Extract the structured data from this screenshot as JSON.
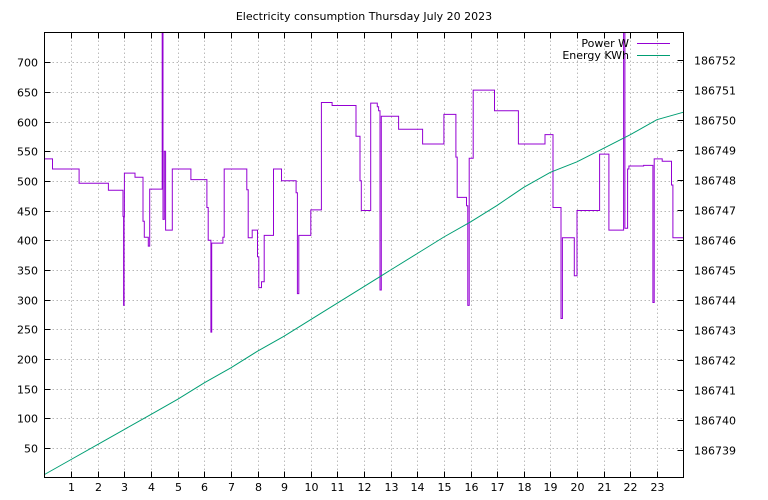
{
  "chart_data": {
    "type": "line",
    "title": "Electricity consumption Thursday July 20 2023",
    "xlabel": "",
    "ylabel": "",
    "y2label": "",
    "xlim": [
      0,
      24
    ],
    "ylim": [
      0,
      750
    ],
    "y2lim": [
      186738.1,
      186752.9
    ],
    "grid": true,
    "legend_position": "top-right",
    "x_ticks": [
      1,
      2,
      3,
      4,
      5,
      6,
      7,
      8,
      9,
      10,
      11,
      12,
      13,
      14,
      15,
      16,
      17,
      18,
      19,
      20,
      21,
      22,
      23
    ],
    "y_ticks": [
      50,
      100,
      150,
      200,
      250,
      300,
      350,
      400,
      450,
      500,
      550,
      600,
      650,
      700
    ],
    "y2_ticks": [
      186739,
      186740,
      186741,
      186742,
      186743,
      186744,
      186745,
      186746,
      186747,
      186748,
      186749,
      186750,
      186751,
      186752
    ],
    "series": [
      {
        "name": "Power W",
        "color": "#9400d3",
        "axis": "left",
        "step": true,
        "points": [
          [
            0,
            537
          ],
          [
            0.3,
            520
          ],
          [
            1.3,
            496
          ],
          [
            2.4,
            484
          ],
          [
            2.95,
            440
          ],
          [
            2.97,
            290
          ],
          [
            2.99,
            440
          ],
          [
            3.0,
            513
          ],
          [
            3.4,
            506
          ],
          [
            3.7,
            432
          ],
          [
            3.75,
            405
          ],
          [
            3.9,
            390
          ],
          [
            3.95,
            486
          ],
          [
            4.4,
            486
          ],
          [
            4.42,
            750
          ],
          [
            4.45,
            435
          ],
          [
            4.5,
            550
          ],
          [
            4.55,
            417
          ],
          [
            4.8,
            520
          ],
          [
            5.5,
            502
          ],
          [
            6.1,
            455
          ],
          [
            6.15,
            400
          ],
          [
            6.25,
            245
          ],
          [
            6.28,
            395
          ],
          [
            6.7,
            405
          ],
          [
            6.75,
            520
          ],
          [
            7.6,
            485
          ],
          [
            7.65,
            404
          ],
          [
            7.8,
            417
          ],
          [
            8.0,
            372
          ],
          [
            8.05,
            320
          ],
          [
            8.15,
            330
          ],
          [
            8.25,
            408
          ],
          [
            8.6,
            520
          ],
          [
            8.9,
            500
          ],
          [
            9.45,
            480
          ],
          [
            9.5,
            310
          ],
          [
            9.55,
            408
          ],
          [
            10.0,
            451
          ],
          [
            10.4,
            632
          ],
          [
            10.8,
            627
          ],
          [
            11.7,
            575
          ],
          [
            11.85,
            500
          ],
          [
            11.9,
            450
          ],
          [
            12.25,
            631
          ],
          [
            12.5,
            625
          ],
          [
            12.55,
            618
          ],
          [
            12.6,
            316
          ],
          [
            12.65,
            609
          ],
          [
            13.3,
            587
          ],
          [
            14.2,
            562
          ],
          [
            15.0,
            612
          ],
          [
            15.45,
            540
          ],
          [
            15.5,
            472
          ],
          [
            15.85,
            458
          ],
          [
            15.9,
            290
          ],
          [
            15.95,
            538
          ],
          [
            16.1,
            653
          ],
          [
            16.9,
            618
          ],
          [
            17.8,
            562
          ],
          [
            18.8,
            578
          ],
          [
            19.1,
            455
          ],
          [
            19.4,
            268
          ],
          [
            19.45,
            404
          ],
          [
            19.9,
            340
          ],
          [
            20.0,
            450
          ],
          [
            20.85,
            545
          ],
          [
            21.2,
            417
          ],
          [
            21.75,
            750
          ],
          [
            21.8,
            420
          ],
          [
            21.9,
            520
          ],
          [
            21.95,
            525
          ],
          [
            22.5,
            526
          ],
          [
            22.85,
            295
          ],
          [
            22.9,
            537
          ],
          [
            23.2,
            533
          ],
          [
            23.55,
            493
          ],
          [
            23.6,
            404
          ],
          [
            24,
            400
          ]
        ]
      },
      {
        "name": "Energy KWh",
        "color": "#009e73",
        "axis": "right",
        "step": false,
        "points": [
          [
            0,
            186738.2
          ],
          [
            1,
            186738.7
          ],
          [
            2,
            186739.2
          ],
          [
            3,
            186739.7
          ],
          [
            4,
            186740.2
          ],
          [
            5,
            186740.7
          ],
          [
            6,
            186741.25
          ],
          [
            7,
            186741.75
          ],
          [
            8,
            186742.3
          ],
          [
            9,
            186742.8
          ],
          [
            10,
            186743.35
          ],
          [
            11,
            186743.9
          ],
          [
            12,
            186744.45
          ],
          [
            13,
            186745.0
          ],
          [
            14,
            186745.55
          ],
          [
            15,
            186746.1
          ],
          [
            16,
            186746.6
          ],
          [
            17,
            186747.15
          ],
          [
            18,
            186747.75
          ],
          [
            19,
            186748.25
          ],
          [
            20,
            186748.6
          ],
          [
            21,
            186749.05
          ],
          [
            22,
            186749.5
          ],
          [
            23,
            186750.0
          ],
          [
            24,
            186750.25
          ]
        ]
      }
    ]
  }
}
